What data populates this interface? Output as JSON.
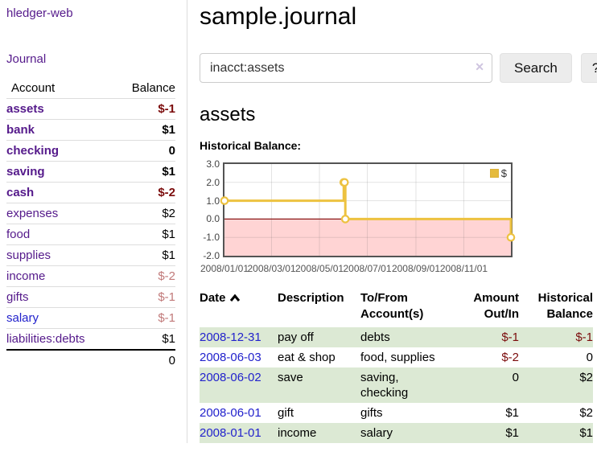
{
  "app": {
    "brand": "hledger-web",
    "nav_journal": "Journal"
  },
  "sidebar": {
    "accounts_table": {
      "col_account": "Account",
      "col_balance": "Balance",
      "accounts": [
        {
          "name": "assets",
          "depth": 1,
          "balance": "$-1",
          "bold": true,
          "neg": "strong"
        },
        {
          "name": "bank",
          "depth": 2,
          "balance": "$1",
          "bold": true,
          "neg": "none"
        },
        {
          "name": "checking",
          "depth": 3,
          "balance": "0",
          "bold": true,
          "neg": "none"
        },
        {
          "name": "saving",
          "depth": 3,
          "balance": "$1",
          "bold": true,
          "neg": "none"
        },
        {
          "name": "cash",
          "depth": 2,
          "balance": "$-2",
          "bold": true,
          "neg": "strong"
        },
        {
          "name": "expenses",
          "depth": 1,
          "balance": "$2",
          "bold": false,
          "neg": "none"
        },
        {
          "name": "food",
          "depth": 2,
          "balance": "$1",
          "bold": false,
          "neg": "none"
        },
        {
          "name": "supplies",
          "depth": 2,
          "balance": "$1",
          "bold": false,
          "neg": "none"
        },
        {
          "name": "income",
          "depth": 1,
          "balance": "$-2",
          "bold": false,
          "neg": "soft"
        },
        {
          "name": "gifts",
          "depth": 2,
          "balance": "$-1",
          "bold": false,
          "neg": "soft"
        },
        {
          "name": "salary",
          "depth": 2,
          "balance": "$-1",
          "bold": false,
          "neg": "soft",
          "link_color": "blue"
        },
        {
          "name": "liabilities:debts",
          "depth": 1,
          "balance": "$1",
          "bold": false,
          "neg": "none"
        }
      ],
      "total": "0"
    }
  },
  "header": {
    "title": "sample.journal"
  },
  "search": {
    "value": "inacct:assets",
    "clear_icon": "✕",
    "button": "Search",
    "help_button": "?"
  },
  "account_page": {
    "heading": "assets",
    "chart_label": "Historical Balance:"
  },
  "chart_data": {
    "type": "line",
    "mode": "step",
    "title": "Historical Balance:",
    "series": [
      {
        "name": "$",
        "points": [
          [
            "2008-01-01",
            1
          ],
          [
            "2008-06-01",
            2
          ],
          [
            "2008-06-02",
            2
          ],
          [
            "2008-06-03",
            0
          ],
          [
            "2008-12-31",
            -1
          ]
        ]
      }
    ],
    "x_ticks": [
      "2008/01/01",
      "2008/03/01",
      "2008/05/01",
      "2008/07/01",
      "2008/09/01",
      "2008/11/01"
    ],
    "y_ticks": [
      3.0,
      2.0,
      1.0,
      0.0,
      -1.0,
      -2.0
    ],
    "y_tick_labels": [
      "3.0",
      "2.0",
      "1.0",
      "0.0",
      "-1.0",
      "-2.0"
    ],
    "ylim": [
      -2,
      3
    ],
    "xlim": [
      "2008-01-01",
      "2008-12-31"
    ],
    "grid": true,
    "legend_position": "top-right",
    "negative_region_shaded": true
  },
  "register": {
    "columns": [
      {
        "label": "Date",
        "sortable": true,
        "sort": "asc"
      },
      {
        "label": "Description"
      },
      {
        "label": "To/From Account(s)"
      },
      {
        "label": "Amount Out/In"
      },
      {
        "label": "Historical Balance"
      }
    ],
    "rows": [
      {
        "date": "2008-12-31",
        "description": "pay off",
        "accounts": "debts",
        "amount": "$-1",
        "amount_neg": true,
        "balance": "$-1",
        "balance_neg": true
      },
      {
        "date": "2008-06-03",
        "description": "eat & shop",
        "accounts": "food, supplies",
        "amount": "$-2",
        "amount_neg": true,
        "balance": "0",
        "balance_neg": false
      },
      {
        "date": "2008-06-02",
        "description": "save",
        "accounts": "saving, checking",
        "amount": "0",
        "amount_neg": false,
        "balance": "$2",
        "balance_neg": false
      },
      {
        "date": "2008-06-01",
        "description": "gift",
        "accounts": "gifts",
        "amount": "$1",
        "amount_neg": false,
        "balance": "$2",
        "balance_neg": false
      },
      {
        "date": "2008-01-01",
        "description": "income",
        "accounts": "salary",
        "amount": "$1",
        "amount_neg": false,
        "balance": "$1",
        "balance_neg": false
      }
    ]
  },
  "colors": {
    "link_purple": "#551a8b",
    "link_blue": "#2222cc",
    "negative_strong": "#7b0c0c",
    "negative_soft": "#c17979",
    "row_stripe_green": "#dce9d4",
    "chart_line": "#edc240",
    "chart_zero_line": "#8b1a1a",
    "chart_negative_fill": "rgba(255,160,160,0.45)",
    "chart_border": "#545454"
  }
}
